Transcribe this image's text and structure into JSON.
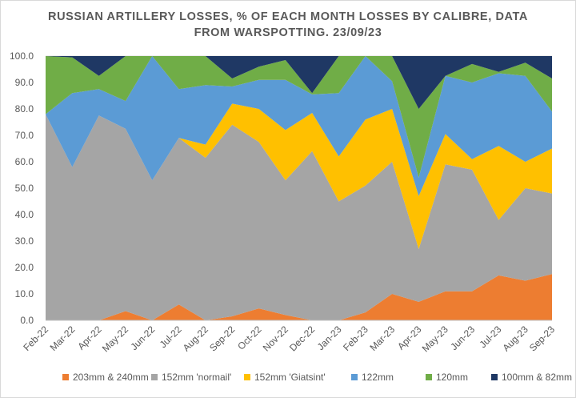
{
  "chart_data": {
    "type": "area",
    "stacked": true,
    "title_lines": [
      "RUSSIAN ARTILLERY LOSSES, % OF EACH MONTH LOSSES BY CALIBRE, DATA",
      "FROM WARSPOTTING. 23/09/23"
    ],
    "categories": [
      "Feb-22",
      "Mar-22",
      "Apr-22",
      "May-22",
      "Jun-22",
      "Jul-22",
      "Aug-22",
      "Sep-22",
      "Oct-22",
      "Nov-22",
      "Dec-22",
      "Jan-23",
      "Feb-23",
      "Mar-23",
      "Apr-23",
      "May-23",
      "Jun-23",
      "Jul-23",
      "Aug-23",
      "Sep-23"
    ],
    "ylim": [
      0,
      100
    ],
    "yticks": [
      "0.0",
      "10.0",
      "20.0",
      "30.0",
      "40.0",
      "50.0",
      "60.0",
      "70.0",
      "80.0",
      "90.0",
      "100.0"
    ],
    "legend_position": "bottom",
    "series": [
      {
        "name": "203mm & 240mm",
        "color": "#ed7d31",
        "values": [
          0,
          0,
          0,
          3.5,
          0,
          6,
          0,
          1.5,
          4.5,
          2,
          0,
          0,
          3,
          10,
          7,
          11,
          11,
          17,
          15,
          17.5
        ]
      },
      {
        "name": "152mm 'normail'",
        "color": "#a5a5a5",
        "values": [
          78,
          58,
          77.5,
          69,
          53,
          63,
          61.5,
          72.5,
          63,
          51,
          64,
          45,
          48,
          50,
          20,
          48,
          46,
          21,
          35,
          30.5
        ]
      },
      {
        "name": "152mm 'Giatsint'",
        "color": "#ffc000",
        "values": [
          0,
          0,
          0,
          0,
          0,
          0,
          5,
          8,
          12.5,
          19,
          14.5,
          17,
          25,
          20,
          20,
          11.5,
          4,
          28,
          10,
          17
        ]
      },
      {
        "name": "122mm",
        "color": "#5b9bd5",
        "values": [
          0,
          28,
          10,
          10.5,
          47,
          18.5,
          22.5,
          6.5,
          11,
          19,
          7,
          24,
          24,
          10.5,
          7,
          22,
          29,
          27.5,
          32.5,
          14
        ]
      },
      {
        "name": "120mm",
        "color": "#70ad47",
        "values": [
          22,
          13.5,
          5,
          17,
          0,
          12.5,
          11,
          3,
          5,
          7.5,
          0.5,
          14,
          0,
          9.5,
          26,
          0,
          7,
          0.5,
          5,
          12.5
        ]
      },
      {
        "name": "100mm & 82mm",
        "color": "#1f3864",
        "values": [
          0,
          0.5,
          7.5,
          0,
          0,
          0,
          0,
          8.5,
          4,
          1.5,
          14,
          0,
          0,
          0,
          20,
          7.5,
          3,
          6,
          2.5,
          8.5
        ]
      }
    ]
  }
}
